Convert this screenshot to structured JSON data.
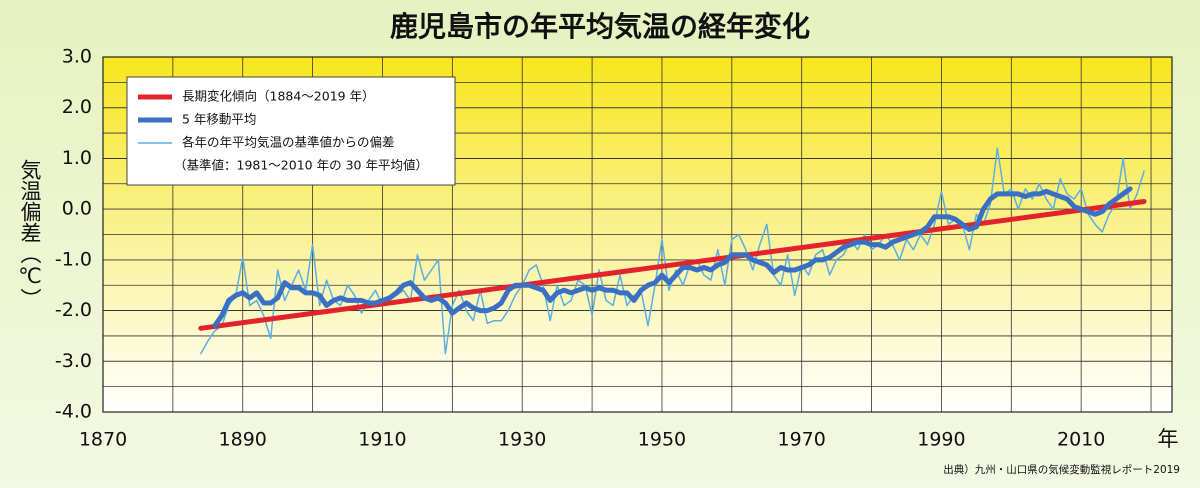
{
  "chart_data": {
    "type": "line",
    "title": "鹿児島市の年平均気温の経年変化",
    "ylabel": "気温偏差（℃）",
    "xlabel": "年",
    "source": "出典）九州・山口県の気候変動監視レポート2019",
    "xlim": [
      1870,
      2023
    ],
    "ylim": [
      -4,
      3
    ],
    "xticks": [
      1870,
      1890,
      1910,
      1930,
      1950,
      1970,
      1990,
      2010
    ],
    "x_gridlines": [
      1870,
      1880,
      1890,
      1900,
      1910,
      1920,
      1930,
      1940,
      1950,
      1960,
      1970,
      1980,
      1990,
      2000,
      2010,
      2020
    ],
    "yticks": [
      {
        "value": 3,
        "label": "3.0"
      },
      {
        "value": 2,
        "label": "2.0"
      },
      {
        "value": 1,
        "label": "1.0"
      },
      {
        "value": 0,
        "label": "0.0"
      },
      {
        "value": -1,
        "label": "-1.0"
      },
      {
        "value": -2,
        "label": "-2.0"
      },
      {
        "value": -3,
        "label": "-3.0"
      },
      {
        "value": -4,
        "label": "-4.0"
      }
    ],
    "y_gridlines": [
      3,
      2.5,
      2,
      1.5,
      1,
      0.5,
      0,
      -0.5,
      -1,
      -1.5,
      -2,
      -2.5,
      -3,
      -3.5,
      -4
    ],
    "legend_note": "（基準値：1981～2010 年の 30 年平均値）",
    "series": [
      {
        "name": "各年の年平均気温の基準値からの偏差",
        "color": "#5aaee3",
        "width": 1.5,
        "x": [
          1884,
          1885,
          1886,
          1887,
          1888,
          1889,
          1890,
          1891,
          1892,
          1893,
          1894,
          1895,
          1896,
          1897,
          1898,
          1899,
          1900,
          1901,
          1902,
          1903,
          1904,
          1905,
          1906,
          1907,
          1908,
          1909,
          1910,
          1911,
          1912,
          1913,
          1914,
          1915,
          1916,
          1917,
          1918,
          1919,
          1920,
          1921,
          1922,
          1923,
          1924,
          1925,
          1926,
          1927,
          1928,
          1929,
          1930,
          1931,
          1932,
          1933,
          1934,
          1935,
          1936,
          1937,
          1938,
          1939,
          1940,
          1941,
          1942,
          1943,
          1944,
          1945,
          1946,
          1947,
          1948,
          1949,
          1950,
          1951,
          1952,
          1953,
          1954,
          1955,
          1956,
          1957,
          1958,
          1959,
          1960,
          1961,
          1962,
          1963,
          1964,
          1965,
          1966,
          1967,
          1968,
          1969,
          1970,
          1971,
          1972,
          1973,
          1974,
          1975,
          1976,
          1977,
          1978,
          1979,
          1980,
          1981,
          1982,
          1983,
          1984,
          1985,
          1986,
          1987,
          1988,
          1989,
          1990,
          1991,
          1992,
          1993,
          1994,
          1995,
          1996,
          1997,
          1998,
          1999,
          2000,
          2001,
          2002,
          2003,
          2004,
          2005,
          2006,
          2007,
          2008,
          2009,
          2010,
          2011,
          2012,
          2013,
          2014,
          2015,
          2016,
          2017,
          2018,
          2019
        ],
        "values": [
          -2.85,
          -2.6,
          -2.4,
          -2.3,
          -1.9,
          -1.7,
          -0.95,
          -1.9,
          -1.8,
          -2.1,
          -2.55,
          -1.2,
          -1.8,
          -1.5,
          -1.2,
          -1.6,
          -0.7,
          -1.9,
          -1.4,
          -1.8,
          -1.9,
          -1.5,
          -1.7,
          -2.05,
          -1.8,
          -1.6,
          -1.9,
          -1.8,
          -1.7,
          -1.6,
          -1.8,
          -0.9,
          -1.4,
          -1.2,
          -1.0,
          -2.85,
          -1.9,
          -1.6,
          -2.0,
          -2.2,
          -1.6,
          -2.25,
          -2.2,
          -2.2,
          -2.0,
          -1.7,
          -1.5,
          -1.2,
          -1.1,
          -1.5,
          -2.2,
          -1.5,
          -1.9,
          -1.8,
          -1.4,
          -1.5,
          -2.1,
          -1.2,
          -1.8,
          -1.9,
          -1.3,
          -1.9,
          -1.7,
          -1.6,
          -2.3,
          -1.5,
          -0.6,
          -1.6,
          -1.2,
          -1.5,
          -1.1,
          -1.0,
          -1.3,
          -1.4,
          -0.8,
          -1.5,
          -0.6,
          -0.5,
          -0.8,
          -1.2,
          -0.7,
          -0.3,
          -1.3,
          -1.5,
          -0.9,
          -1.7,
          -1.1,
          -1.3,
          -0.9,
          -0.8,
          -1.3,
          -1.0,
          -0.9,
          -0.6,
          -0.8,
          -0.5,
          -0.8,
          -0.7,
          -0.5,
          -0.7,
          -1.0,
          -0.6,
          -0.8,
          -0.5,
          -0.7,
          -0.3,
          0.35,
          -0.3,
          -0.2,
          -0.3,
          -0.8,
          -0.1,
          -0.3,
          0.1,
          1.2,
          0.3,
          0.4,
          0.0,
          0.4,
          0.2,
          0.5,
          0.2,
          0.0,
          0.6,
          0.3,
          0.2,
          0.4,
          -0.1,
          -0.3,
          -0.45,
          -0.1,
          0.1,
          1.0,
          0.0,
          0.3,
          0.75
        ]
      },
      {
        "name": "長期変化傾向（1884～2019 年）",
        "color": "#e3232b",
        "width": 5,
        "x": [
          1884,
          2019
        ],
        "values": [
          -2.35,
          0.15
        ]
      },
      {
        "name": "5 年移動平均",
        "color": "#3a70c4",
        "width": 5,
        "x": [
          1886,
          1887,
          1888,
          1889,
          1890,
          1891,
          1892,
          1893,
          1894,
          1895,
          1896,
          1897,
          1898,
          1899,
          1900,
          1901,
          1902,
          1903,
          1904,
          1905,
          1906,
          1907,
          1908,
          1909,
          1910,
          1911,
          1912,
          1913,
          1914,
          1915,
          1916,
          1917,
          1918,
          1919,
          1920,
          1921,
          1922,
          1923,
          1924,
          1925,
          1926,
          1927,
          1928,
          1929,
          1930,
          1931,
          1932,
          1933,
          1934,
          1935,
          1936,
          1937,
          1938,
          1939,
          1940,
          1941,
          1942,
          1943,
          1944,
          1945,
          1946,
          1947,
          1948,
          1949,
          1950,
          1951,
          1952,
          1953,
          1954,
          1955,
          1956,
          1957,
          1958,
          1959,
          1960,
          1961,
          1962,
          1963,
          1964,
          1965,
          1966,
          1967,
          1968,
          1969,
          1970,
          1971,
          1972,
          1973,
          1974,
          1975,
          1976,
          1977,
          1978,
          1979,
          1980,
          1981,
          1982,
          1983,
          1984,
          1985,
          1986,
          1987,
          1988,
          1989,
          1990,
          1991,
          1992,
          1993,
          1994,
          1995,
          1996,
          1997,
          1998,
          1999,
          2000,
          2001,
          2002,
          2003,
          2004,
          2005,
          2006,
          2007,
          2008,
          2009,
          2010,
          2011,
          2012,
          2013,
          2014,
          2015,
          2016,
          2017
        ],
        "values": [
          -2.3,
          -2.1,
          -1.8,
          -1.7,
          -1.65,
          -1.75,
          -1.65,
          -1.85,
          -1.85,
          -1.75,
          -1.45,
          -1.55,
          -1.55,
          -1.65,
          -1.65,
          -1.7,
          -1.9,
          -1.8,
          -1.75,
          -1.8,
          -1.8,
          -1.8,
          -1.85,
          -1.85,
          -1.8,
          -1.75,
          -1.65,
          -1.5,
          -1.45,
          -1.6,
          -1.75,
          -1.8,
          -1.75,
          -1.85,
          -2.05,
          -1.95,
          -1.85,
          -1.95,
          -2.0,
          -2.0,
          -1.95,
          -1.85,
          -1.6,
          -1.5,
          -1.5,
          -1.5,
          -1.55,
          -1.6,
          -1.8,
          -1.65,
          -1.6,
          -1.65,
          -1.6,
          -1.55,
          -1.6,
          -1.55,
          -1.6,
          -1.6,
          -1.65,
          -1.65,
          -1.8,
          -1.6,
          -1.5,
          -1.45,
          -1.3,
          -1.45,
          -1.3,
          -1.15,
          -1.15,
          -1.2,
          -1.15,
          -1.2,
          -1.1,
          -1.05,
          -0.9,
          -0.9,
          -0.9,
          -1.0,
          -1.05,
          -1.1,
          -1.25,
          -1.15,
          -1.2,
          -1.2,
          -1.15,
          -1.1,
          -1.0,
          -1.0,
          -0.95,
          -0.85,
          -0.75,
          -0.7,
          -0.65,
          -0.65,
          -0.7,
          -0.7,
          -0.75,
          -0.65,
          -0.6,
          -0.55,
          -0.5,
          -0.45,
          -0.35,
          -0.15,
          -0.15,
          -0.15,
          -0.2,
          -0.3,
          -0.4,
          -0.35,
          0.0,
          0.2,
          0.3,
          0.3,
          0.3,
          0.3,
          0.25,
          0.3,
          0.3,
          0.35,
          0.3,
          0.25,
          0.2,
          0.05,
          0.0,
          -0.05,
          -0.1,
          -0.05,
          0.1,
          0.2,
          0.3,
          0.4
        ]
      }
    ],
    "legend_order": [
      1,
      2,
      0
    ]
  }
}
